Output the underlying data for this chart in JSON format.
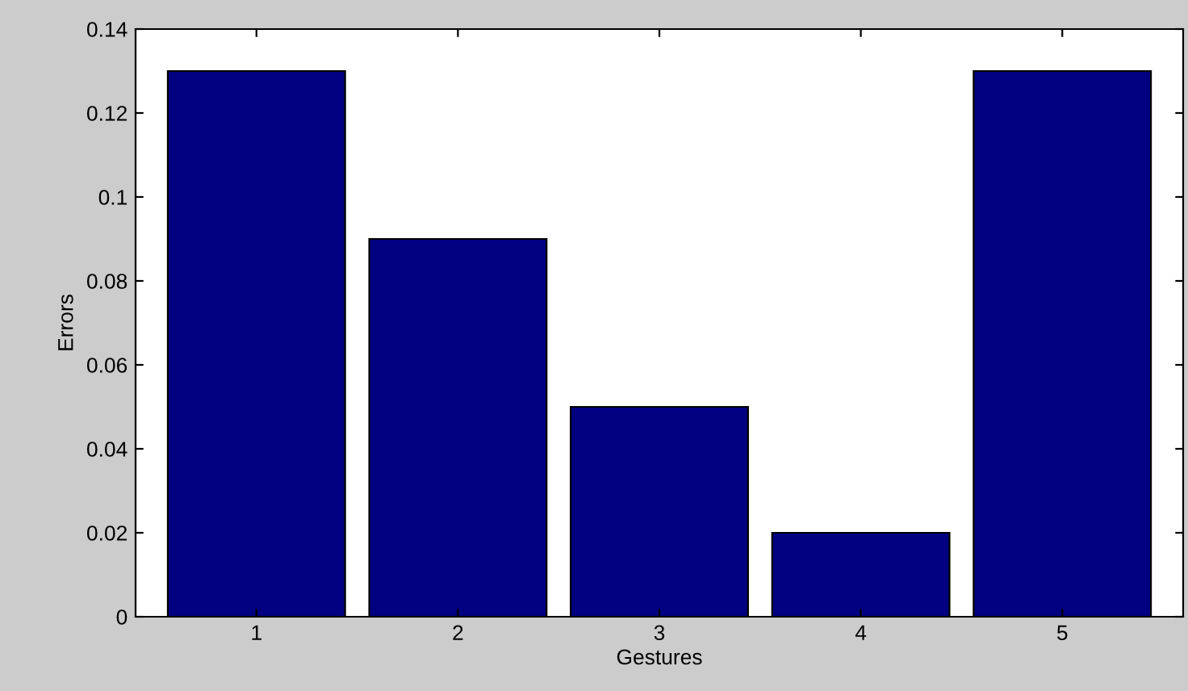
{
  "chart_data": {
    "type": "bar",
    "xlabel": "Gestures",
    "ylabel": "Errors",
    "categories": [
      "1",
      "2",
      "3",
      "4",
      "5"
    ],
    "values": [
      0.13,
      0.09,
      0.05,
      0.02,
      0.13
    ],
    "color": "#000080",
    "ylim": [
      0,
      0.14
    ],
    "yticks": [
      {
        "value": 0,
        "label": "0"
      },
      0.02,
      0.04,
      0.06,
      0.08,
      0.1,
      0.12,
      0.14
    ],
    "grid": false
  }
}
